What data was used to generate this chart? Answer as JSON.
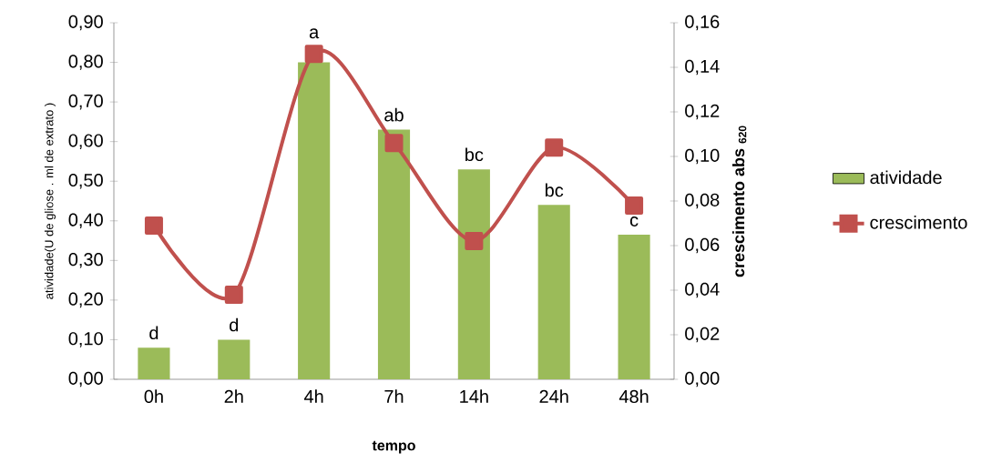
{
  "chart_data": {
    "type": "bar",
    "xlabel": "tempo",
    "ylabel": "atividade(U de gliose . ml de extrato )",
    "y2label": "crescimento abs $_{620}$",
    "categories": [
      "0h",
      "2h",
      "4h",
      "7h",
      "14h",
      "24h",
      "48h"
    ],
    "series": [
      {
        "name": "atividade",
        "color": "#9bbb59",
        "values": [
          0.08,
          0.1,
          0.8,
          0.63,
          0.53,
          0.44,
          0.365
        ]
      },
      {
        "name": "crescimento",
        "type": "line",
        "axis": "y2",
        "color": "#c0504d",
        "marker": "square",
        "values": [
          0.069,
          0.038,
          0.146,
          0.106,
          0.062,
          0.104,
          0.078
        ]
      }
    ],
    "ylim": [
      0,
      0.9
    ],
    "yticks": [
      {
        "value": 0,
        "label": "0,00"
      },
      {
        "value": 0.1,
        "label": "0,10"
      },
      {
        "value": 0.2,
        "label": "0,20"
      },
      {
        "value": 0.3,
        "label": "0,30"
      },
      {
        "value": 0.4,
        "label": "0,40"
      },
      {
        "value": 0.5,
        "label": "0,50"
      },
      {
        "value": 0.6,
        "label": "0,60"
      },
      {
        "value": 0.7,
        "label": "0,70"
      },
      {
        "value": 0.8,
        "label": "0,80"
      },
      {
        "value": 0.9,
        "label": "0,90"
      }
    ],
    "y2lim": [
      0,
      0.16
    ],
    "y2ticks": [
      {
        "value": 0,
        "label": "0,00"
      },
      {
        "value": 0.02,
        "label": "0,02"
      },
      {
        "value": 0.04,
        "label": "0,04"
      },
      {
        "value": 0.06,
        "label": "0,06"
      },
      {
        "value": 0.08,
        "label": "0,08"
      },
      {
        "value": 0.1,
        "label": "0,10"
      },
      {
        "value": 0.12,
        "label": "0,12"
      },
      {
        "value": 0.14,
        "label": "0,14"
      },
      {
        "value": 0.16,
        "label": "0,16"
      }
    ],
    "annotations": [
      "d",
      "d",
      "a",
      "ab",
      "bc",
      "bc",
      "c"
    ],
    "grid": false,
    "legend": "right"
  }
}
